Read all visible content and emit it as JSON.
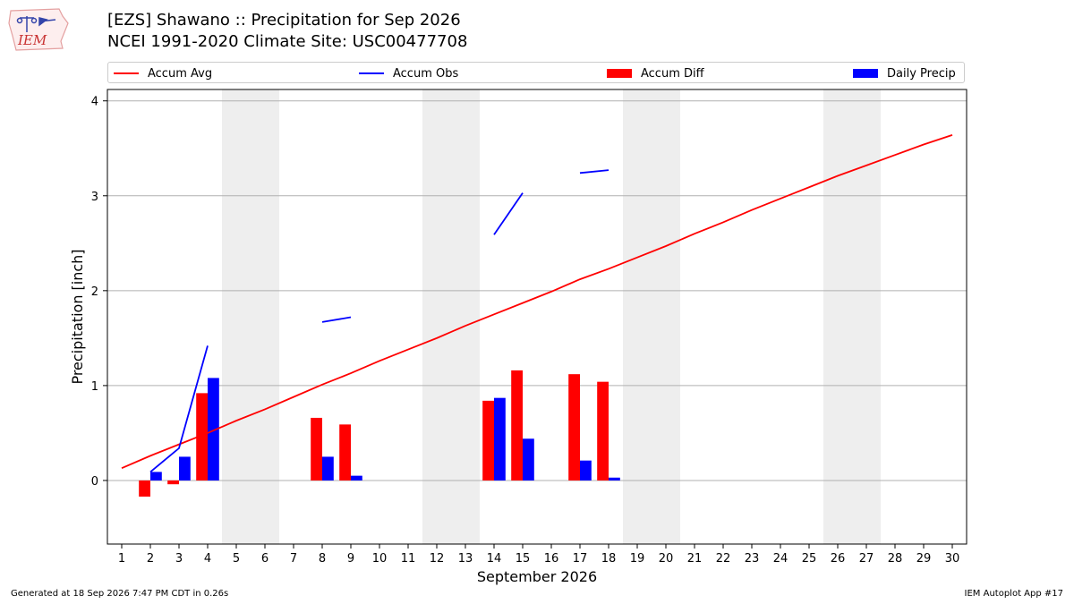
{
  "header": {
    "title_line1": "[EZS] Shawano :: Precipitation for Sep 2026",
    "title_line2": "NCEI 1991-2020 Climate Site: USC00477708",
    "logo_text": "IEM"
  },
  "footer": {
    "generated": "Generated at 18 Sep 2026 7:47 PM CDT in 0.26s",
    "app": "IEM Autoplot App #17"
  },
  "colors": {
    "accum_avg": "#ff0000",
    "accum_obs": "#0000ff",
    "accum_diff": "#ff0000",
    "daily_precip": "#0000ff",
    "weekend_shade": "#eeeeee",
    "grid": "#b0b0b0"
  },
  "chart_data": {
    "type": "bar",
    "xlabel": "September 2026",
    "ylabel": "Precipitation [inch]",
    "xlim": [
      0.5,
      30.5
    ],
    "ylim": [
      -0.67,
      4.12
    ],
    "x_ticks": [
      1,
      2,
      3,
      4,
      5,
      6,
      7,
      8,
      9,
      10,
      11,
      12,
      13,
      14,
      15,
      16,
      17,
      18,
      19,
      20,
      21,
      22,
      23,
      24,
      25,
      26,
      27,
      28,
      29,
      30
    ],
    "y_ticks": [
      0,
      1,
      2,
      3,
      4
    ],
    "grid": "horizontal",
    "legend_position": "top",
    "weekend_shading": [
      [
        5,
        6
      ],
      [
        12,
        13
      ],
      [
        19,
        20
      ],
      [
        26,
        27
      ]
    ],
    "legend": [
      "Accum Avg",
      "Accum Obs",
      "Accum Diff",
      "Daily Precip"
    ],
    "series": [
      {
        "name": "Accum Avg",
        "kind": "line",
        "x": [
          1,
          2,
          3,
          4,
          5,
          6,
          7,
          8,
          9,
          10,
          11,
          12,
          13,
          14,
          15,
          16,
          17,
          18,
          19,
          20,
          21,
          22,
          23,
          24,
          25,
          26,
          27,
          28,
          29,
          30
        ],
        "values": [
          0.13,
          0.26,
          0.38,
          0.5,
          0.63,
          0.75,
          0.88,
          1.01,
          1.13,
          1.26,
          1.38,
          1.5,
          1.63,
          1.75,
          1.87,
          1.99,
          2.12,
          2.23,
          2.35,
          2.47,
          2.6,
          2.72,
          2.85,
          2.97,
          3.09,
          3.21,
          3.32,
          3.43,
          3.54,
          3.64
        ]
      },
      {
        "name": "Accum Obs",
        "kind": "line",
        "x": [
          1,
          2,
          3,
          4,
          5,
          6,
          7,
          8,
          9,
          10,
          11,
          12,
          13,
          14,
          15,
          16,
          17,
          18,
          19,
          20,
          21,
          22,
          23,
          24,
          25,
          26,
          27,
          28,
          29,
          30
        ],
        "values": [
          null,
          0.09,
          0.34,
          1.42,
          null,
          null,
          null,
          1.67,
          1.72,
          null,
          null,
          null,
          null,
          2.59,
          3.03,
          null,
          3.24,
          3.27,
          null,
          null,
          null,
          null,
          null,
          null,
          null,
          null,
          null,
          null,
          null,
          null
        ]
      },
      {
        "name": "Accum Diff",
        "kind": "bar",
        "x": [
          2,
          3,
          4,
          8,
          9,
          14,
          15,
          17,
          18
        ],
        "values": [
          -0.17,
          -0.04,
          0.92,
          0.66,
          0.59,
          0.84,
          1.16,
          1.12,
          1.04
        ]
      },
      {
        "name": "Daily Precip",
        "kind": "bar",
        "x": [
          2,
          3,
          4,
          8,
          9,
          14,
          15,
          17,
          18
        ],
        "values": [
          0.09,
          0.25,
          1.08,
          0.25,
          0.05,
          0.87,
          0.44,
          0.21,
          0.03
        ]
      }
    ]
  }
}
